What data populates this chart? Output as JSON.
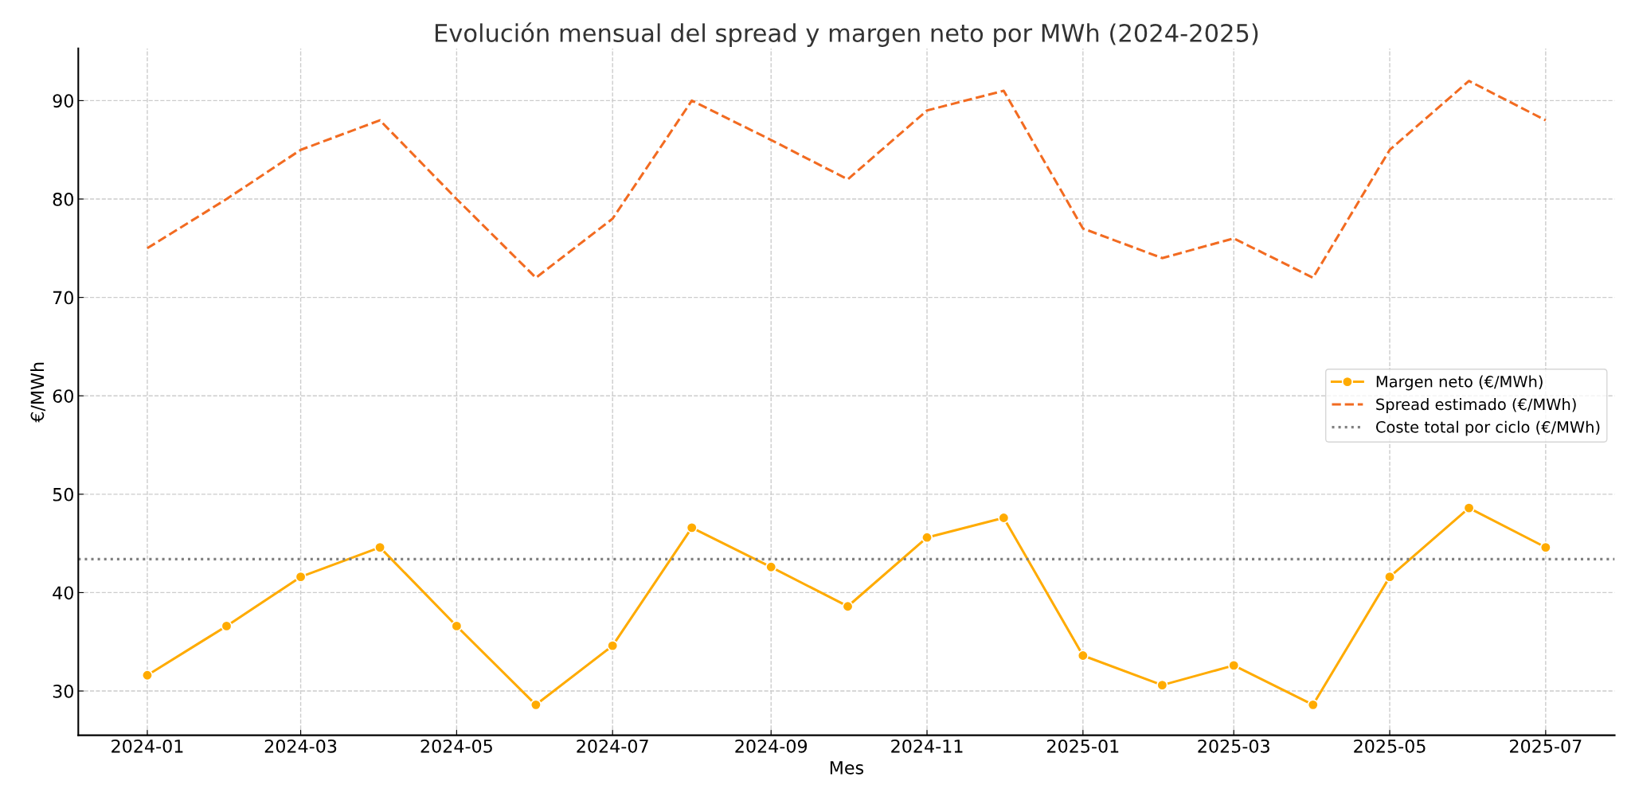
{
  "chart_data": {
    "type": "line",
    "title": "Evolución mensual del spread y margen neto por MWh (2024-2025)",
    "xlabel": "Mes",
    "ylabel": "€/MWh",
    "x": [
      "2024-01",
      "2024-02",
      "2024-03",
      "2024-04",
      "2024-05",
      "2024-06",
      "2024-07",
      "2024-08",
      "2024-09",
      "2024-10",
      "2024-11",
      "2024-12",
      "2025-01",
      "2025-02",
      "2025-03",
      "2025-04",
      "2025-05",
      "2025-06",
      "2025-07"
    ],
    "series": [
      {
        "name": "Margen neto (€/MWh)",
        "color": "#ffab00",
        "marker": "circle",
        "line_style": "solid",
        "values": [
          31.6,
          36.6,
          41.6,
          44.6,
          36.6,
          28.6,
          34.6,
          46.6,
          42.6,
          38.6,
          45.6,
          47.6,
          33.6,
          30.6,
          32.6,
          28.6,
          41.6,
          48.6,
          44.6
        ]
      },
      {
        "name": "Spread estimado (€/MWh)",
        "color": "#f26b21",
        "marker": "none",
        "line_style": "dashed",
        "values": [
          75,
          80,
          85,
          88,
          80,
          72,
          78,
          90,
          86,
          82,
          89,
          91,
          77,
          74,
          76,
          72,
          85,
          92,
          88
        ]
      }
    ],
    "ref_lines": [
      {
        "axis": "y",
        "value": 43.4,
        "label": "Coste total por ciclo (€/MWh)",
        "color": "#808080",
        "line_style": "dotted"
      }
    ],
    "xlim": [
      "2023-12-05",
      "2025-07-28"
    ],
    "xticks": [
      {
        "value": "2024-01",
        "label": "2024-01"
      },
      {
        "value": "2024-03",
        "label": "2024-03"
      },
      {
        "value": "2024-05",
        "label": "2024-05"
      },
      {
        "value": "2024-07",
        "label": "2024-07"
      },
      {
        "value": "2024-09",
        "label": "2024-09"
      },
      {
        "value": "2024-11",
        "label": "2024-11"
      },
      {
        "value": "2025-01",
        "label": "2025-01"
      },
      {
        "value": "2025-03",
        "label": "2025-03"
      },
      {
        "value": "2025-05",
        "label": "2025-05"
      },
      {
        "value": "2025-07",
        "label": "2025-07"
      }
    ],
    "ylim": [
      25.5,
      95.3
    ],
    "yticks": [
      30,
      40,
      50,
      60,
      70,
      80,
      90
    ],
    "grid": true,
    "legend": "right"
  }
}
